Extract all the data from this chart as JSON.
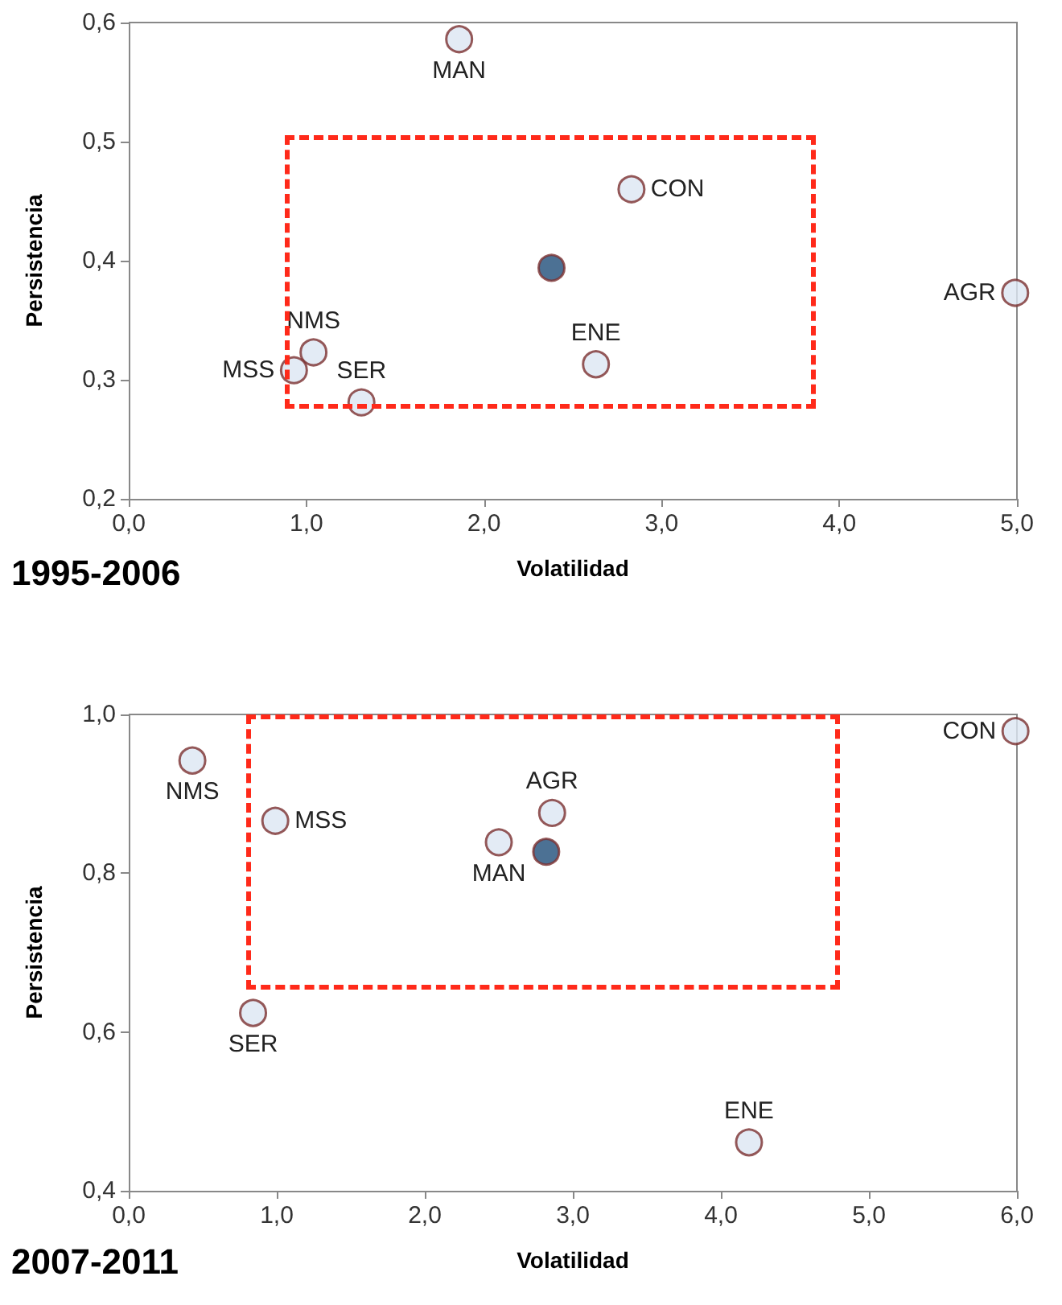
{
  "chart_data": [
    {
      "type": "scatter",
      "title": "1995-2006",
      "xlabel": "Volatilidad",
      "ylabel": "Persistencia",
      "marker": "circle",
      "xlim": [
        0,
        5
      ],
      "xticks": [
        {
          "value": 0,
          "label": "0,0"
        },
        {
          "value": 1,
          "label": "1,0"
        },
        {
          "value": 2,
          "label": "2,0"
        },
        {
          "value": 3,
          "label": "3,0"
        },
        {
          "value": 4,
          "label": "4,0"
        },
        {
          "value": 5,
          "label": "5,0"
        }
      ],
      "ylim": [
        0.2,
        0.6
      ],
      "yticks": [
        {
          "value": 0.2,
          "label": "0,2"
        },
        {
          "value": 0.3,
          "label": "0,3"
        },
        {
          "value": 0.4,
          "label": "0,4"
        },
        {
          "value": 0.5,
          "label": "0,5"
        },
        {
          "value": 0.6,
          "label": "0,6"
        }
      ],
      "series": [
        {
          "color": "#dce6f2",
          "x": [
            1.86,
            2.83,
            4.99,
            1.04,
            0.93,
            1.31,
            2.63
          ],
          "values": [
            0.586,
            0.46,
            0.373,
            0.323,
            0.308,
            0.281,
            0.313
          ]
        },
        {
          "color": "#1f4e79",
          "x": [
            2.38
          ],
          "values": [
            0.394
          ]
        }
      ],
      "annotations": [
        {
          "text": "MAN",
          "x": 1.86,
          "y": 0.586
        },
        {
          "text": "CON",
          "x": 2.83,
          "y": 0.46
        },
        {
          "text": "AGR",
          "x": 4.99,
          "y": 0.373
        },
        {
          "text": "NMS",
          "x": 1.04,
          "y": 0.323
        },
        {
          "text": "MSS",
          "x": 0.93,
          "y": 0.308
        },
        {
          "text": "SER",
          "x": 1.31,
          "y": 0.281
        },
        {
          "text": "ENE",
          "x": 2.63,
          "y": 0.313
        }
      ]
    },
    {
      "type": "scatter",
      "title": "2007-2011",
      "xlabel": "Volatilidad",
      "ylabel": "Persistencia",
      "marker": "circle",
      "xlim": [
        0,
        6
      ],
      "xticks": [
        {
          "value": 0,
          "label": "0,0"
        },
        {
          "value": 1,
          "label": "1,0"
        },
        {
          "value": 2,
          "label": "2,0"
        },
        {
          "value": 3,
          "label": "3,0"
        },
        {
          "value": 4,
          "label": "4,0"
        },
        {
          "value": 5,
          "label": "5,0"
        },
        {
          "value": 6,
          "label": "6,0"
        }
      ],
      "ylim": [
        0.4,
        1.0
      ],
      "yticks": [
        {
          "value": 0.4,
          "label": "0,4"
        },
        {
          "value": 0.6,
          "label": "0,6"
        },
        {
          "value": 0.8,
          "label": "0,8"
        },
        {
          "value": 1.0,
          "label": "1,0"
        }
      ],
      "series": [
        {
          "color": "#dce6f2",
          "x": [
            0.43,
            0.99,
            2.5,
            2.86,
            5.99,
            0.84,
            4.19
          ],
          "values": [
            0.942,
            0.866,
            0.839,
            0.876,
            0.979,
            0.624,
            0.461
          ]
        },
        {
          "color": "#1f4e79",
          "x": [
            2.82
          ],
          "values": [
            0.827
          ]
        }
      ],
      "annotations": [
        {
          "text": "NMS",
          "x": 0.43,
          "y": 0.942
        },
        {
          "text": "MSS",
          "x": 0.99,
          "y": 0.866
        },
        {
          "text": "MAN",
          "x": 2.5,
          "y": 0.839
        },
        {
          "text": "AGR",
          "x": 2.86,
          "y": 0.876
        },
        {
          "text": "CON",
          "x": 5.99,
          "y": 0.979
        },
        {
          "text": "SER",
          "x": 0.84,
          "y": 0.624
        },
        {
          "text": "ENE",
          "x": 4.19,
          "y": 0.461
        }
      ]
    }
  ]
}
